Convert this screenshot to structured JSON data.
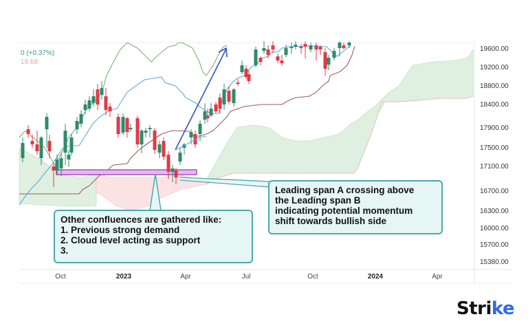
{
  "legend": {
    "change_line": "0 (+0.37%)",
    "value_line": "19.68"
  },
  "y_axis": {
    "labels": [
      "19600.00",
      "19200.00",
      "18800.00",
      "18400.00",
      "17900.00",
      "17500.00",
      "17100.00",
      "16700.00",
      "16300.00",
      "16000.00",
      "15700.00",
      "15380.00"
    ]
  },
  "x_axis": {
    "labels": [
      {
        "text": "Oct",
        "bold": false
      },
      {
        "text": "2023",
        "bold": true
      },
      {
        "text": "Apr",
        "bold": false
      },
      {
        "text": "Jul",
        "bold": false
      },
      {
        "text": "Oct",
        "bold": false
      },
      {
        "text": "2024",
        "bold": true
      },
      {
        "text": "Apr",
        "bold": false
      }
    ]
  },
  "callouts": {
    "left": {
      "lines": [
        "Other confluences are gathered like:",
        "1. Previous strong demand",
        "2. Cloud level acting as support",
        "3."
      ]
    },
    "right": {
      "lines": [
        "Leading span A crossing above",
        "the Leading span B",
        "indicating potential momentum",
        "shift towards bullish side"
      ]
    }
  },
  "logo": {
    "text_main": "Stri",
    "text_accent": "ke"
  },
  "colors": {
    "bull": "#2e8b6a",
    "bear": "#e03a45",
    "tenkan": "#5aa9e6",
    "kijun": "#a05a5a",
    "chikou": "#6aaa55",
    "cloud_bull": "#d9eedb",
    "cloud_bear": "#fbe0e0",
    "demand_zone": "#e6b8f0",
    "demand_border": "#9b3fb5",
    "arrow": "#2e50c8",
    "callout_border": "#4aa8ad",
    "callout_bg": "#e6f6f5"
  },
  "chart_data": {
    "type": "candlestick",
    "title": "",
    "instrument_hint": "Index daily/weekly candles with Ichimoku Cloud",
    "xlabel": "",
    "ylabel": "",
    "ylim": [
      15380,
      19700
    ],
    "x_ticks": [
      "Oct",
      "2023",
      "Apr",
      "Jul",
      "Oct",
      "2024",
      "Apr"
    ],
    "y_ticks": [
      19600,
      19200,
      18800,
      18400,
      17900,
      17500,
      17100,
      16700,
      16300,
      16000,
      15700,
      15380
    ],
    "legend": [
      "0 (+0.37%)",
      "19.68"
    ],
    "grid": false,
    "indicators": [
      "Tenkan-sen (blue)",
      "Kijun-sen (brown)",
      "Chikou span (green)",
      "Leading span A",
      "Leading span B",
      "Kumo cloud (green bullish / red bearish)"
    ],
    "annotations": [
      {
        "type": "zone",
        "label": "Previous strong demand",
        "price_range": [
          17000,
          17070
        ],
        "color": "#e6b8f0"
      },
      {
        "type": "arrow",
        "label": "bullish move",
        "from_price": 17350,
        "to_price": 19500
      },
      {
        "type": "callout",
        "text": "Other confluences are gathered like: 1. Previous strong demand 2. Cloud level acting as support 3."
      },
      {
        "type": "callout",
        "text": "Leading span A crossing above the Leading span B indicating potential momentum shift towards bullish side"
      }
    ],
    "approx_close_path": [
      {
        "x": "Sep 2022",
        "close": 17600
      },
      {
        "x": "Oct 2022",
        "close": 17100
      },
      {
        "x": "Nov 2022",
        "close": 18200
      },
      {
        "x": "Dec 2022",
        "close": 18600
      },
      {
        "x": "Jan 2023",
        "close": 17900
      },
      {
        "x": "Feb 2023",
        "close": 17400
      },
      {
        "x": "Mar 2023",
        "close": 16950
      },
      {
        "x": "Apr 2023",
        "close": 17700
      },
      {
        "x": "May 2023",
        "close": 18400
      },
      {
        "x": "Jun 2023",
        "close": 18900
      },
      {
        "x": "Jul 2023",
        "close": 19600
      },
      {
        "x": "Aug 2023",
        "close": 19400
      },
      {
        "x": "Sep 2023",
        "close": 19650
      },
      {
        "x": "Oct 2023",
        "close": 19100
      },
      {
        "x": "Nov 2023",
        "close": 19600
      }
    ]
  }
}
